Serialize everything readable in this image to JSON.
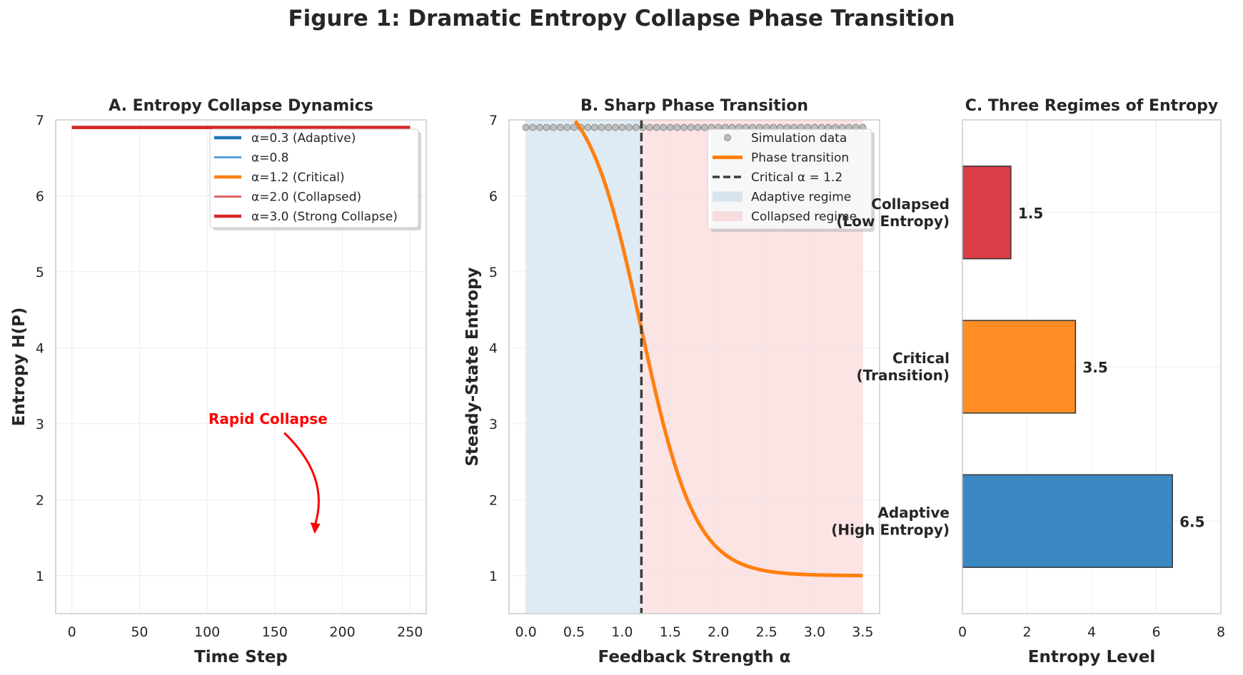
{
  "figure_title": "Figure 1: Dramatic Entropy Collapse Phase Transition",
  "chart_data": [
    {
      "type": "line",
      "title": "A. Entropy Collapse Dynamics",
      "xlabel": "Time Step",
      "ylabel": "Entropy H(P)",
      "xlim": [
        -12,
        262
      ],
      "ylim": [
        0.5,
        7
      ],
      "xticks": [
        0,
        50,
        100,
        150,
        200,
        250
      ],
      "yticks": [
        1,
        2,
        3,
        4,
        5,
        6,
        7
      ],
      "grid": true,
      "legend_position": "top-right",
      "series": [
        {
          "name": "α=0.3 (Adaptive)",
          "color": "#1f77b4",
          "x": [
            0,
            250
          ],
          "y": [
            6.9,
            6.9
          ]
        },
        {
          "name": "α=0.8",
          "color": "#5a9ed6",
          "x": [
            0,
            250
          ],
          "y": [
            6.9,
            6.9
          ]
        },
        {
          "name": "α=1.2 (Critical)",
          "color": "#ff7f0e",
          "x": [
            0,
            250
          ],
          "y": [
            6.9,
            6.9
          ]
        },
        {
          "name": "α=2.0 (Collapsed)",
          "color": "#e06666",
          "x": [
            0,
            250
          ],
          "y": [
            6.9,
            6.9
          ]
        },
        {
          "name": "α=3.0 (Strong Collapse)",
          "color": "#d62728",
          "x": [
            0,
            250
          ],
          "y": [
            6.9,
            6.9
          ]
        }
      ],
      "annotation": {
        "text": "Rapid Collapse",
        "text_xy": [
          145,
          3.0
        ],
        "arrow_to": [
          180,
          1.55
        ],
        "color": "#ff0000"
      }
    },
    {
      "type": "line",
      "title": "B. Sharp Phase Transition",
      "xlabel": "Feedback Strength α",
      "ylabel": "Steady-State Entropy",
      "xlim": [
        -0.175,
        3.675
      ],
      "ylim": [
        0.5,
        7
      ],
      "xticks": [
        0.0,
        0.5,
        1.0,
        1.5,
        2.0,
        2.5,
        3.0,
        3.5
      ],
      "yticks": [
        1,
        2,
        3,
        4,
        5,
        6,
        7
      ],
      "grid": true,
      "legend_position": "top-right",
      "simulation": {
        "name": "Simulation data",
        "color": "#999999",
        "x_start": 0.0,
        "x_end": 3.5,
        "count": 50,
        "y": 6.9
      },
      "transition_curve": {
        "name": "Phase transition",
        "color": "#ff7f0e",
        "x_range": [
          0,
          3.5
        ],
        "low": 1.0,
        "high": 7.5,
        "center": 1.2,
        "width": 0.28
      },
      "critical_line": {
        "name": "Critical α = 1.2",
        "x": 1.2,
        "color": "#3d3d3d"
      },
      "regions": [
        {
          "name": "Adaptive regime",
          "x": [
            0,
            1.2
          ],
          "color": "#1f77b4"
        },
        {
          "name": "Collapsed regime",
          "x": [
            1.2,
            3.5
          ],
          "color": "#e8434d"
        }
      ]
    },
    {
      "type": "bar",
      "orientation": "horizontal",
      "title": "C. Three Regimes of Entropy",
      "xlabel": "Entropy Level",
      "ylabel": "",
      "xlim": [
        0,
        8
      ],
      "xticks": [
        0,
        2,
        4,
        6,
        8
      ],
      "grid": true,
      "categories": [
        {
          "line1": "Adaptive",
          "line2": "(High Entropy)"
        },
        {
          "line1": "Critical",
          "line2": "(Transition)"
        },
        {
          "line1": "Collapsed",
          "line2": "(Low Entropy)"
        }
      ],
      "values": [
        6.5,
        3.5,
        1.5
      ],
      "value_labels": [
        "6.5",
        "3.5",
        "1.5"
      ],
      "colors": [
        "#3b88c3",
        "#ff8c24",
        "#dc3c45"
      ]
    }
  ]
}
